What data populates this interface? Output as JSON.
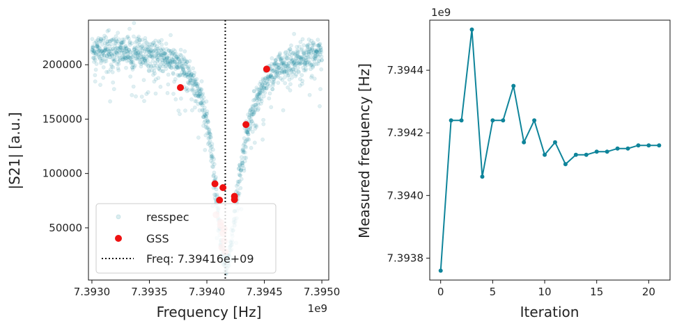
{
  "colors": {
    "teal": "#0e849a",
    "red": "#ee1111",
    "pink": "#f7b3b3",
    "black": "#111111"
  },
  "chart_data": [
    {
      "type": "scatter",
      "xlabel": "Frequency [Hz]",
      "ylabel": "|S21| [a.u.]",
      "x_offset_label": "1e9",
      "xlim": [
        7.39297,
        7.39506
      ],
      "ylim": [
        2000,
        241000
      ],
      "xticks": [
        7.393,
        7.3935,
        7.394,
        7.3945,
        7.395
      ],
      "xtick_labels": [
        "7.3930",
        "7.3935",
        "7.3940",
        "7.3945",
        "7.3950"
      ],
      "yticks": [
        50000,
        100000,
        150000,
        200000
      ],
      "ytick_labels": [
        "50000",
        "100000",
        "150000",
        "200000"
      ],
      "resonance": {
        "f0": 7.39416,
        "depth": 200000,
        "baseline": 216000,
        "width": 0.00026
      },
      "vline_x": 7.39416,
      "gss_points": {
        "x": [
          7.39377,
          7.39407,
          7.39411,
          7.39414,
          7.39424,
          7.39424,
          7.39434,
          7.39452
        ],
        "y": [
          179000,
          90500,
          75500,
          87000,
          76000,
          79000,
          145000,
          196000
        ]
      },
      "faded_points": {
        "x": [
          7.39412,
          7.39414,
          7.39415,
          7.39413,
          7.39416,
          7.39415,
          7.39412,
          7.39408
        ],
        "y": [
          52000,
          45000,
          38000,
          32000,
          28000,
          49000,
          55000,
          62000
        ]
      },
      "legend": {
        "resspec": "resspec",
        "gss": "GSS",
        "freq": "Freq: 7.39416e+09"
      }
    },
    {
      "type": "line",
      "xlabel": "Iteration",
      "ylabel": "Measured frequency [Hz]",
      "y_offset_label": "1e9",
      "xlim": [
        -1.05,
        22.05
      ],
      "ylim": [
        7.39373,
        7.39456
      ],
      "xticks": [
        0,
        5,
        10,
        15,
        20
      ],
      "xtick_labels": [
        "0",
        "5",
        "10",
        "15",
        "20"
      ],
      "yticks": [
        7.3938,
        7.394,
        7.3942,
        7.3944
      ],
      "ytick_labels": [
        "7.3938",
        "7.3940",
        "7.3942",
        "7.3944"
      ],
      "x": [
        0,
        1,
        2,
        3,
        4,
        5,
        6,
        7,
        8,
        9,
        10,
        11,
        12,
        13,
        14,
        15,
        16,
        17,
        18,
        19,
        20,
        21
      ],
      "y": [
        7.39376,
        7.39424,
        7.39424,
        7.39453,
        7.39406,
        7.39424,
        7.39424,
        7.39435,
        7.39417,
        7.39424,
        7.39413,
        7.39417,
        7.3941,
        7.39413,
        7.39413,
        7.39414,
        7.39414,
        7.39415,
        7.39415,
        7.39416,
        7.39416,
        7.39416
      ]
    }
  ]
}
